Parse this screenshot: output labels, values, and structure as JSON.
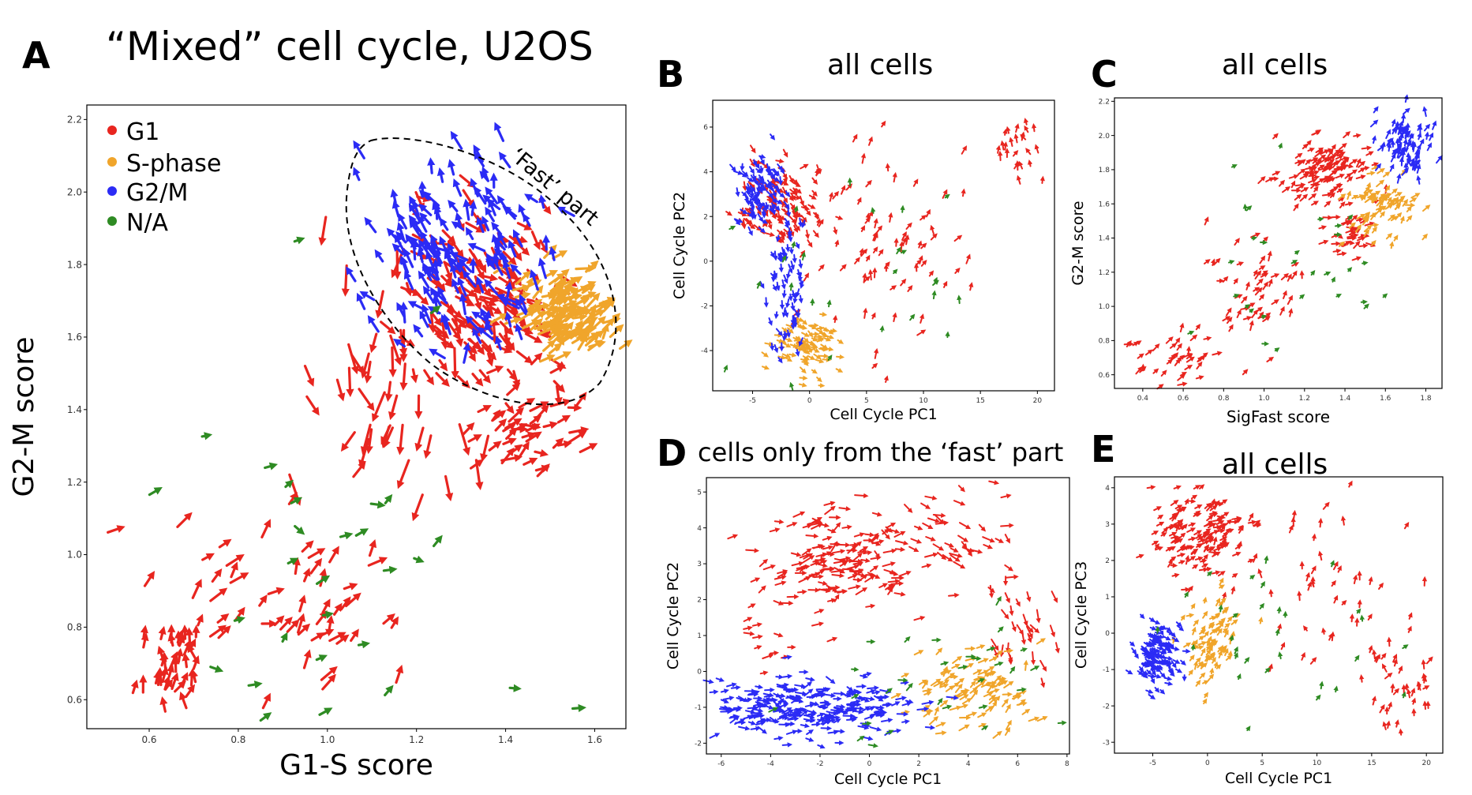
{
  "colors": {
    "G1": "#e8251f",
    "S": "#f0a52b",
    "G2M": "#2b2bf5",
    "NA": "#2e8b23",
    "axis": "#000000"
  },
  "panels": {
    "A": {
      "letter": "A",
      "title": "“Mixed” cell cycle, U2OS",
      "region_label": "‘Fast’ part"
    },
    "B": {
      "letter": "B",
      "title": "all cells"
    },
    "C": {
      "letter": "C",
      "title": "all cells"
    },
    "D": {
      "letter": "D",
      "title": "cells only from the ‘fast’ part"
    },
    "E": {
      "letter": "E",
      "title": "all cells"
    }
  },
  "legend": [
    {
      "key": "G1",
      "label": "G1"
    },
    {
      "key": "S",
      "label": "S-phase"
    },
    {
      "key": "G2M",
      "label": "G2/M"
    },
    {
      "key": "NA",
      "label": "N/A"
    }
  ],
  "chart_data": [
    {
      "id": "A",
      "type": "scatter",
      "title": "“Mixed” cell cycle, U2OS",
      "xlabel": "G1-S score",
      "ylabel": "G2-M score",
      "xlim": [
        0.46,
        1.67
      ],
      "ylim": [
        0.52,
        2.24
      ],
      "xticks": [
        0.6,
        0.8,
        1.0,
        1.2,
        1.4,
        1.6
      ],
      "yticks": [
        0.6,
        0.8,
        1.0,
        1.2,
        1.4,
        1.6,
        1.8,
        2.0,
        2.2
      ],
      "tick_labels_x": [
        "0.6",
        "0.8",
        "1.0",
        "1.2",
        "1.4",
        "1.6"
      ],
      "tick_labels_y": [
        "0.6",
        "0.8",
        "1.0",
        "1.2",
        "1.4",
        "1.6",
        "1.8",
        "2.0",
        "2.2"
      ],
      "series": [
        {
          "name": "G1",
          "clusters": [
            {
              "cx": 0.66,
              "cy": 0.7,
              "sx": 0.05,
              "sy": 0.06,
              "n": 40,
              "angle": 75,
              "len": 0.025
            },
            {
              "cx": 0.9,
              "cy": 0.9,
              "sx": 0.12,
              "sy": 0.12,
              "n": 55,
              "angle": 45,
              "len": 0.03
            },
            {
              "cx": 1.12,
              "cy": 1.4,
              "sx": 0.1,
              "sy": 0.16,
              "n": 45,
              "angle": -95,
              "len": 0.05
            },
            {
              "cx": 1.33,
              "cy": 1.7,
              "sx": 0.09,
              "sy": 0.13,
              "n": 140,
              "angle": -45,
              "len": 0.03
            },
            {
              "cx": 1.45,
              "cy": 1.35,
              "sx": 0.07,
              "sy": 0.08,
              "n": 45,
              "angle": 30,
              "len": 0.03
            }
          ]
        },
        {
          "name": "S-phase",
          "clusters": [
            {
              "cx": 1.54,
              "cy": 1.68,
              "sx": 0.05,
              "sy": 0.07,
              "n": 130,
              "angle": 35,
              "len": 0.03
            }
          ]
        },
        {
          "name": "G2/M",
          "clusters": [
            {
              "cx": 1.28,
              "cy": 1.85,
              "sx": 0.1,
              "sy": 0.12,
              "n": 160,
              "angle": 120,
              "len": 0.03
            }
          ]
        },
        {
          "name": "N/A",
          "clusters": [
            {
              "cx": 1.05,
              "cy": 1.0,
              "sx": 0.3,
              "sy": 0.35,
              "n": 30,
              "angle": 20,
              "len": 0.02
            }
          ]
        }
      ]
    },
    {
      "id": "B",
      "type": "scatter",
      "title": "all cells",
      "xlabel": "Cell Cycle PC1",
      "ylabel": "Cell Cycle PC2",
      "xlim": [
        -8.5,
        21.5
      ],
      "ylim": [
        -5.8,
        7.2
      ],
      "xticks": [
        -5,
        0,
        5,
        10,
        15,
        20
      ],
      "yticks": [
        -4,
        -2,
        0,
        2,
        4,
        6
      ],
      "tick_labels_x": [
        "-5",
        "0",
        "5",
        "10",
        "15",
        "20"
      ],
      "tick_labels_y": [
        "-4",
        "-2",
        "0",
        "2",
        "4",
        "6"
      ],
      "series": [
        {
          "name": "G1",
          "clusters": [
            {
              "cx": -2.5,
              "cy": 2.5,
              "sx": 1.8,
              "sy": 1.0,
              "n": 110,
              "angle": -50,
              "len": 0.55
            },
            {
              "cx": 6.0,
              "cy": 0.5,
              "sx": 4.5,
              "sy": 2.3,
              "n": 90,
              "angle": 65,
              "len": 0.55
            },
            {
              "cx": 18.5,
              "cy": 5.0,
              "sx": 1.2,
              "sy": 0.8,
              "n": 25,
              "angle": 90,
              "len": 0.5
            }
          ]
        },
        {
          "name": "S-phase",
          "clusters": [
            {
              "cx": -0.5,
              "cy": -3.8,
              "sx": 1.7,
              "sy": 0.6,
              "n": 90,
              "angle": -20,
              "len": 0.45
            }
          ]
        },
        {
          "name": "G2/M",
          "clusters": [
            {
              "cx": -4.5,
              "cy": 3.2,
              "sx": 1.0,
              "sy": 0.8,
              "n": 90,
              "angle": -60,
              "len": 0.5
            },
            {
              "cx": -2.0,
              "cy": -1.0,
              "sx": 0.8,
              "sy": 1.5,
              "n": 70,
              "angle": -80,
              "len": 0.5
            }
          ]
        },
        {
          "name": "N/A",
          "clusters": [
            {
              "cx": 3.0,
              "cy": -1.0,
              "sx": 6.0,
              "sy": 2.5,
              "n": 30,
              "angle": 70,
              "len": 0.4
            }
          ]
        }
      ]
    },
    {
      "id": "C",
      "type": "scatter",
      "title": "all cells",
      "xlabel": "SigFast score",
      "ylabel": "G2-M score",
      "xlim": [
        0.26,
        1.88
      ],
      "ylim": [
        0.52,
        2.22
      ],
      "xticks": [
        0.4,
        0.6,
        0.8,
        1.0,
        1.2,
        1.4,
        1.6,
        1.8
      ],
      "yticks": [
        0.6,
        0.8,
        1.0,
        1.2,
        1.4,
        1.6,
        1.8,
        2.0,
        2.2
      ],
      "tick_labels_x": [
        "0.4",
        "0.6",
        "0.8",
        "1.0",
        "1.2",
        "1.4",
        "1.6",
        "1.8"
      ],
      "tick_labels_y": [
        "0.6",
        "0.8",
        "1.0",
        "1.2",
        "1.4",
        "1.6",
        "1.8",
        "2.0",
        "2.2"
      ],
      "series": [
        {
          "name": "G1",
          "clusters": [
            {
              "cx": 0.55,
              "cy": 0.72,
              "sx": 0.12,
              "sy": 0.08,
              "n": 45,
              "angle": 35,
              "len": 0.03
            },
            {
              "cx": 0.95,
              "cy": 1.1,
              "sx": 0.14,
              "sy": 0.14,
              "n": 55,
              "angle": 45,
              "len": 0.03
            },
            {
              "cx": 1.3,
              "cy": 1.8,
              "sx": 0.12,
              "sy": 0.1,
              "n": 120,
              "angle": 30,
              "len": 0.03
            },
            {
              "cx": 1.42,
              "cy": 1.42,
              "sx": 0.08,
              "sy": 0.06,
              "n": 35,
              "angle": 20,
              "len": 0.03
            }
          ]
        },
        {
          "name": "S-phase",
          "clusters": [
            {
              "cx": 1.58,
              "cy": 1.58,
              "sx": 0.08,
              "sy": 0.1,
              "n": 80,
              "angle": 45,
              "len": 0.03
            }
          ]
        },
        {
          "name": "G2/M",
          "clusters": [
            {
              "cx": 1.7,
              "cy": 1.95,
              "sx": 0.06,
              "sy": 0.1,
              "n": 90,
              "angle": 70,
              "len": 0.03
            }
          ]
        },
        {
          "name": "N/A",
          "clusters": [
            {
              "cx": 1.1,
              "cy": 1.2,
              "sx": 0.35,
              "sy": 0.35,
              "n": 30,
              "angle": 30,
              "len": 0.02
            }
          ]
        }
      ]
    },
    {
      "id": "D",
      "type": "scatter",
      "title": "cells only from the ‘fast’ part",
      "xlabel": "Cell Cycle PC1",
      "ylabel": "Cell Cycle PC2",
      "xlim": [
        -6.6,
        8.1
      ],
      "ylim": [
        -2.3,
        5.4
      ],
      "xticks": [
        -6,
        -4,
        -2,
        0,
        2,
        4,
        6,
        8
      ],
      "yticks": [
        -2,
        -1,
        0,
        1,
        2,
        3,
        4,
        5
      ],
      "tick_labels_x": [
        "-6",
        "-4",
        "-2",
        "0",
        "2",
        "4",
        "6",
        "8"
      ],
      "tick_labels_y": [
        "-2",
        "-1",
        "0",
        "1",
        "2",
        "3",
        "4",
        "5"
      ],
      "series": [
        {
          "name": "G1",
          "clusters": [
            {
              "cx": -1.5,
              "cy": 3.2,
              "sx": 1.6,
              "sy": 0.7,
              "n": 140,
              "angle": 15,
              "len": 0.35
            },
            {
              "cx": 3.0,
              "cy": 3.6,
              "sx": 1.6,
              "sy": 0.8,
              "n": 50,
              "angle": -25,
              "len": 0.35
            },
            {
              "cx": 6.3,
              "cy": 1.3,
              "sx": 0.7,
              "sy": 0.8,
              "n": 30,
              "angle": -70,
              "len": 0.35
            },
            {
              "cx": -4.0,
              "cy": 1.0,
              "sx": 1.0,
              "sy": 0.4,
              "n": 15,
              "angle": 10,
              "len": 0.3
            }
          ]
        },
        {
          "name": "S-phase",
          "clusters": [
            {
              "cx": 4.3,
              "cy": -0.5,
              "sx": 1.3,
              "sy": 0.6,
              "n": 100,
              "angle": 30,
              "len": 0.3
            }
          ]
        },
        {
          "name": "G2/M",
          "clusters": [
            {
              "cx": -2.5,
              "cy": -1.0,
              "sx": 2.3,
              "sy": 0.45,
              "n": 250,
              "angle": 0,
              "len": 0.3
            }
          ]
        },
        {
          "name": "N/A",
          "clusters": [
            {
              "cx": 2.0,
              "cy": -0.5,
              "sx": 4.0,
              "sy": 1.0,
              "n": 35,
              "angle": 20,
              "len": 0.25
            }
          ]
        }
      ]
    },
    {
      "id": "E",
      "type": "scatter",
      "title": "all cells",
      "xlabel": "Cell Cycle PC1",
      "ylabel": "Cell Cycle PC3",
      "xlim": [
        -8.5,
        21.5
      ],
      "ylim": [
        -3.3,
        4.3
      ],
      "xticks": [
        -5,
        0,
        5,
        10,
        15,
        20
      ],
      "yticks": [
        -3,
        -2,
        -1,
        0,
        1,
        2,
        3,
        4
      ],
      "tick_labels_x": [
        "-5",
        "0",
        "5",
        "10",
        "15",
        "20"
      ],
      "tick_labels_y": [
        "-3",
        "-2",
        "-1",
        "0",
        "1",
        "2",
        "3",
        "4"
      ],
      "series": [
        {
          "name": "G1",
          "clusters": [
            {
              "cx": -0.5,
              "cy": 2.8,
              "sx": 2.2,
              "sy": 0.6,
              "n": 150,
              "angle": 30,
              "len": 0.5
            },
            {
              "cx": 10.0,
              "cy": 1.2,
              "sx": 4.0,
              "sy": 1.2,
              "n": 50,
              "angle": 80,
              "len": 0.5
            },
            {
              "cx": 18.0,
              "cy": -1.5,
              "sx": 1.8,
              "sy": 0.8,
              "n": 40,
              "angle": 80,
              "len": 0.5
            }
          ]
        },
        {
          "name": "S-phase",
          "clusters": [
            {
              "cx": 0.5,
              "cy": -0.2,
              "sx": 1.3,
              "sy": 0.6,
              "n": 90,
              "angle": 50,
              "len": 0.45
            }
          ]
        },
        {
          "name": "G2/M",
          "clusters": [
            {
              "cx": -4.5,
              "cy": -0.5,
              "sx": 1.0,
              "sy": 0.45,
              "n": 130,
              "angle": -30,
              "len": 0.45
            }
          ]
        },
        {
          "name": "N/A",
          "clusters": [
            {
              "cx": 5.0,
              "cy": 0.0,
              "sx": 6.0,
              "sy": 1.3,
              "n": 30,
              "angle": 60,
              "len": 0.4
            }
          ]
        }
      ]
    }
  ]
}
